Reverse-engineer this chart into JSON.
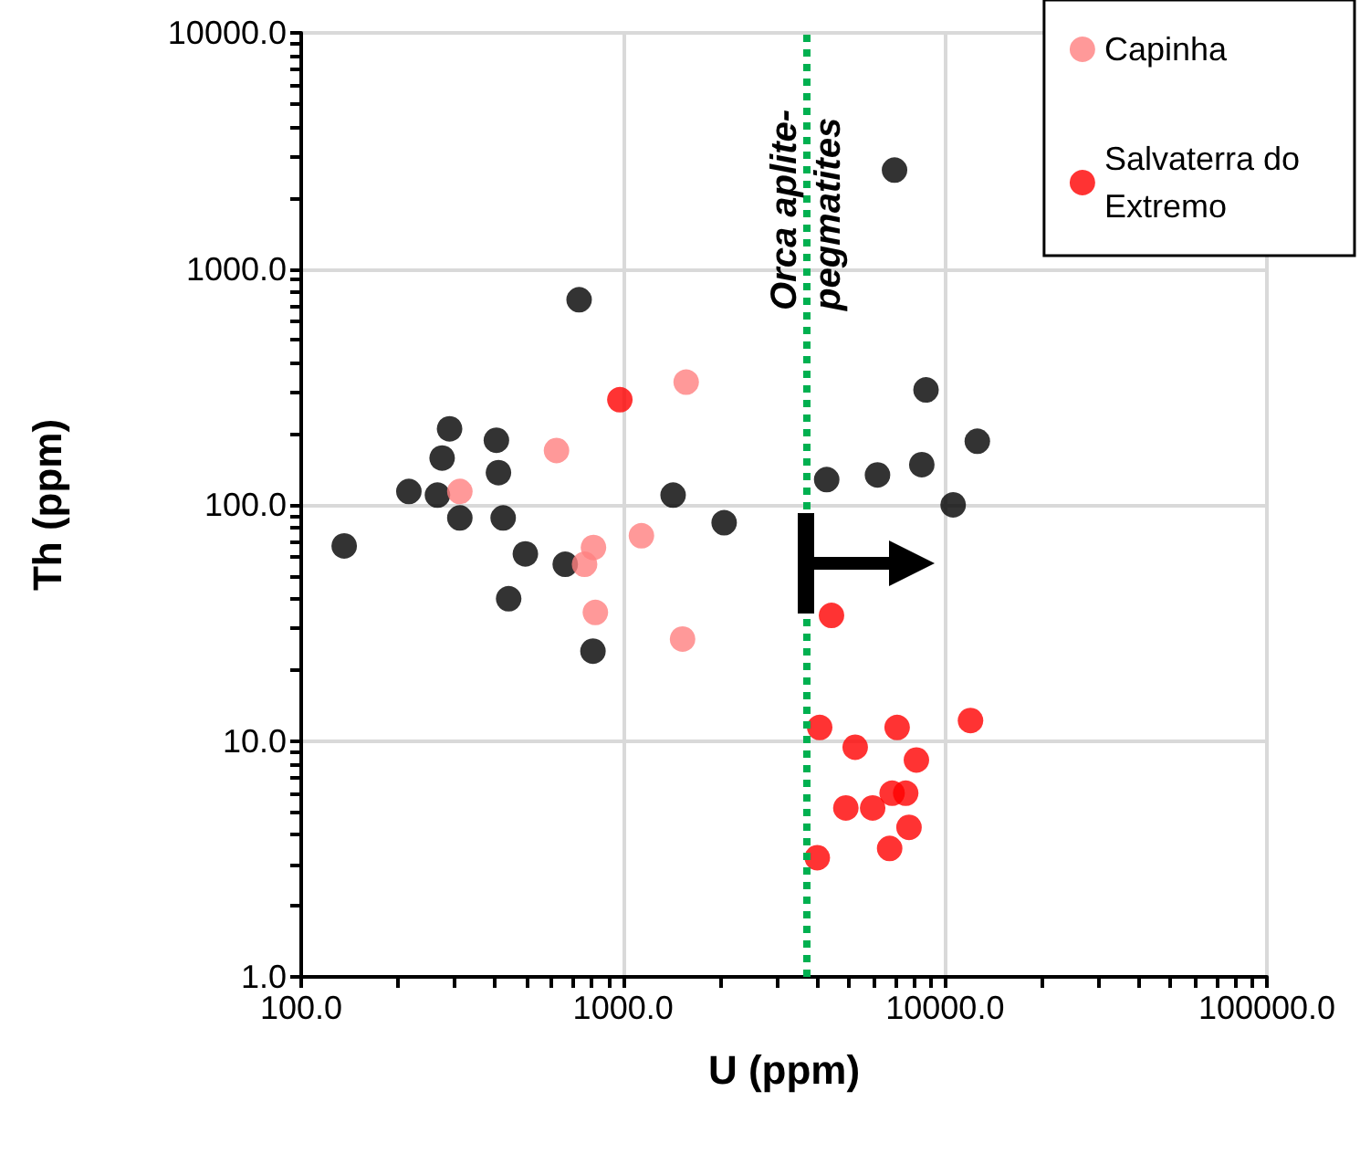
{
  "chart_data": {
    "type": "scatter",
    "xlabel": "U (ppm)",
    "ylabel": "Th (ppm)",
    "log": "xy",
    "grid": true,
    "legend": "top right",
    "marker": "circle",
    "xlim": [
      100,
      100000
    ],
    "xticks": [
      {
        "value": 100,
        "label": "100.0"
      },
      {
        "value": 1000,
        "label": "1000.0"
      },
      {
        "value": 10000,
        "label": "10000.0"
      },
      {
        "value": 100000,
        "label": "100000.0"
      }
    ],
    "ylim": [
      1,
      10000
    ],
    "yticks": [
      {
        "value": 1,
        "label": "1.0"
      },
      {
        "value": 10,
        "label": "10.0"
      },
      {
        "value": 100,
        "label": "100.0"
      },
      {
        "value": 1000,
        "label": "1000.0"
      },
      {
        "value": 10000,
        "label": "10000.0"
      }
    ],
    "ref_lines": [
      {
        "axis": "x",
        "value": 3700,
        "label": "Orca aplite-\npegmatites",
        "color": "#00b050",
        "line_style": "dotted"
      }
    ],
    "series": [
      {
        "color": "#000000",
        "x": [
          730,
          289,
          274,
          404,
          410,
          216,
          265,
          311,
          424,
          136,
          497,
          661,
          441,
          806,
          1430,
          2060,
          6970,
          8730,
          12600,
          4290,
          6170,
          8470,
          10600
        ],
        "values": [
          740,
          210,
          158,
          188,
          137,
          114,
          110,
          88,
          88,
          67,
          62,
          56,
          40,
          24,
          110,
          84,
          2620,
          307,
          186,
          128,
          134,
          148,
          100
        ]
      },
      {
        "name": "Capinha",
        "color": "#ff8080",
        "x": [
          311,
          621,
          1570,
          809,
          759,
          1140,
          820,
          1530
        ],
        "values": [
          114,
          170,
          331,
          66,
          56,
          74,
          35,
          27
        ]
      },
      {
        "name": "Salvaterra do Extremo",
        "color": "#ff0000",
        "x": [
          4440,
          977,
          4080,
          7100,
          12000,
          5260,
          8150,
          6850,
          7550,
          4920,
          5960,
          7730,
          6730,
          4010
        ],
        "values": [
          34,
          279,
          11.4,
          11.4,
          12.2,
          9.4,
          8.3,
          6.0,
          6.0,
          5.2,
          5.2,
          4.3,
          3.5,
          3.2
        ]
      }
    ]
  }
}
